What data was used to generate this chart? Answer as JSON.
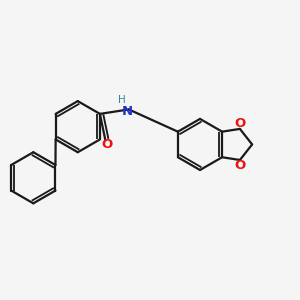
{
  "background_color": "#f5f5f5",
  "bond_color": "#1a1a1a",
  "oxygen_color": "#ee1111",
  "nitrogen_color": "#2233cc",
  "h_color": "#338899",
  "line_width": 1.6,
  "fig_size": [
    3.0,
    3.0
  ],
  "dpi": 100,
  "xlim": [
    -2.5,
    2.8
  ],
  "ylim": [
    -1.6,
    1.6
  ]
}
